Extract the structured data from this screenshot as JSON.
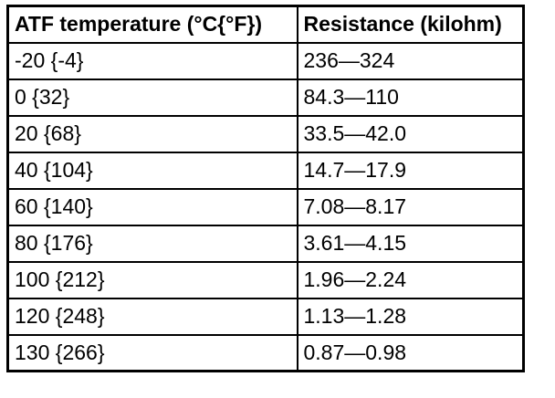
{
  "table": {
    "name": "atf-temperature-resistance-table",
    "columns": [
      {
        "label": "ATF temperature (°C{°F})"
      },
      {
        "label": "Resistance (kilohm)"
      }
    ],
    "rows": [
      {
        "temperature": "-20 {-4}",
        "resistance": "236—324"
      },
      {
        "temperature": "0 {32}",
        "resistance": "84.3—110"
      },
      {
        "temperature": "20 {68}",
        "resistance": "33.5—42.0"
      },
      {
        "temperature": "40 {104}",
        "resistance": "14.7—17.9"
      },
      {
        "temperature": "60 {140}",
        "resistance": "7.08—8.17"
      },
      {
        "temperature": "80 {176}",
        "resistance": "3.61—4.15"
      },
      {
        "temperature": "100 {212}",
        "resistance": "1.96—2.24"
      },
      {
        "temperature": "120 {248}",
        "resistance": "1.13—1.28"
      },
      {
        "temperature": "130 {266}",
        "resistance": "0.87—0.98"
      }
    ],
    "colors": {
      "border": "#000000",
      "text": "#000000",
      "background": "#ffffff"
    }
  }
}
